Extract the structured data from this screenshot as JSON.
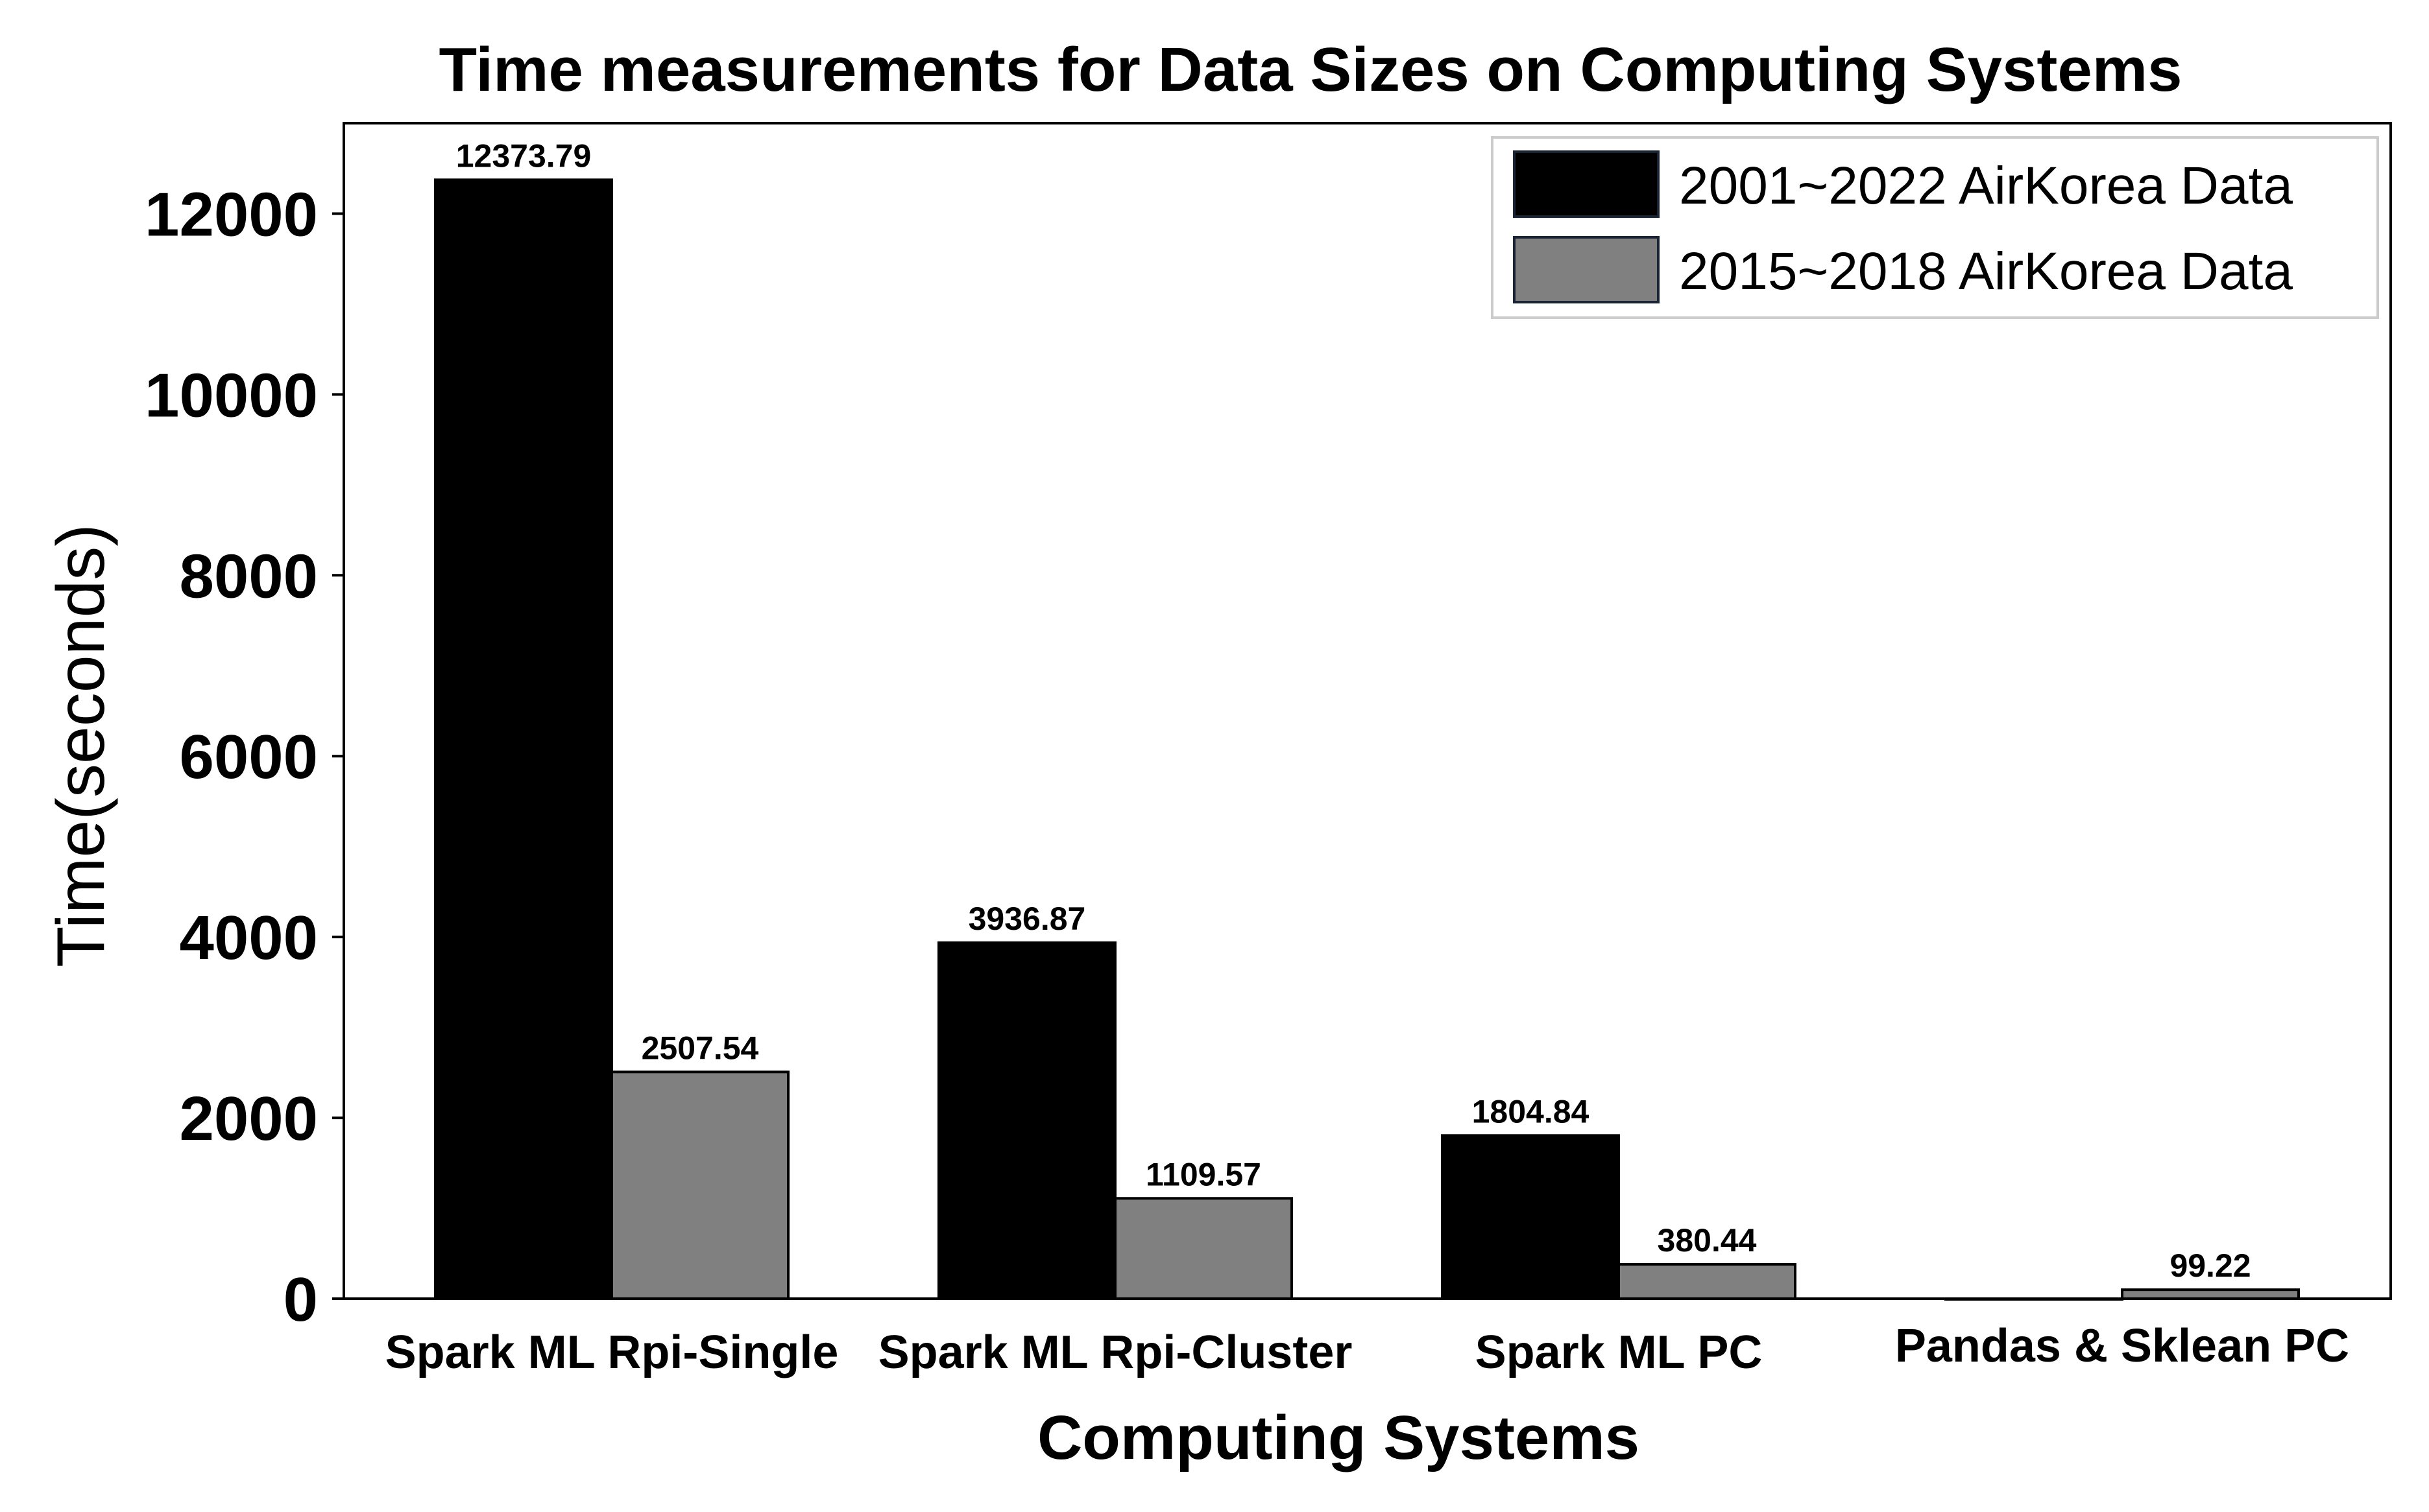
{
  "chart_data": {
    "type": "bar",
    "title": "Time measurements for Data Sizes on Computing Systems",
    "xlabel": "Computing Systems",
    "ylabel": "Time(seconds)",
    "categories": [
      "Spark ML Rpi-Single",
      "Spark ML Rpi-Cluster",
      "Spark ML PC",
      "Pandas & Sklean PC"
    ],
    "series": [
      {
        "name": "2001~2022 AirKorea Data",
        "color": "#000000",
        "values": [
          12373.79,
          3936.87,
          1804.84,
          0
        ],
        "labels": [
          "12373.79",
          "3936.87",
          "1804.84",
          ""
        ]
      },
      {
        "name": "2015~2018 AirKorea Data",
        "color": "#808080",
        "values": [
          2507.54,
          1109.57,
          380.44,
          99.22
        ],
        "labels": [
          "2507.54",
          "1109.57",
          "380.44",
          "99.22"
        ]
      }
    ],
    "yticks": [
      0,
      2000,
      4000,
      6000,
      8000,
      10000,
      12000
    ],
    "ylim": [
      0,
      13000
    ],
    "grid": false,
    "legend_position": "top-right"
  }
}
